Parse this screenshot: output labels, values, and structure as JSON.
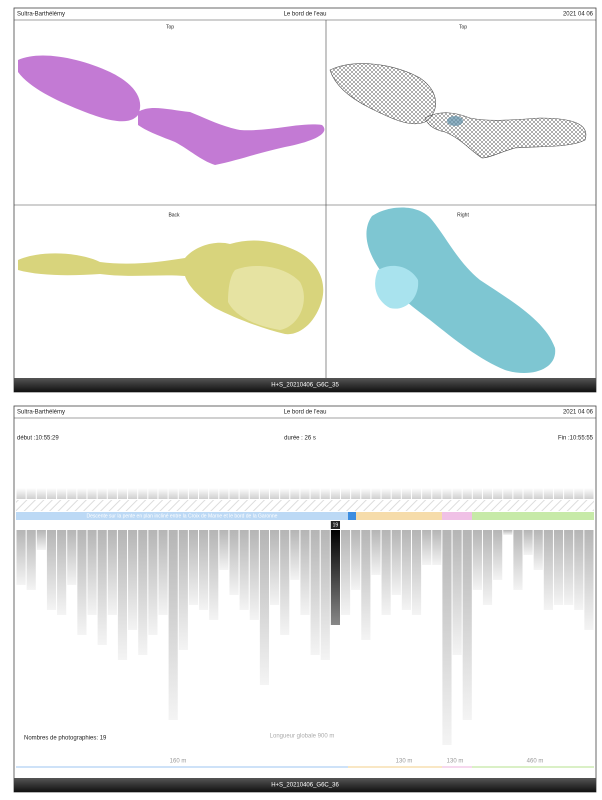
{
  "sheet_top": {
    "header": {
      "left": "Sultra-Barthélémy",
      "center": "Le bord de l'eau",
      "right": "2021 04 06"
    },
    "views": [
      "Top",
      "Top",
      "Back",
      "Right"
    ],
    "footer": "H+S_20210406_G6C_35"
  },
  "sheet_bottom": {
    "header": {
      "left": "Sultra-Barthélémy",
      "center": "Le bord de l'eau",
      "right": "2021 04 06"
    },
    "start": "début :10:55:29",
    "duration": "durée : 26 s",
    "end": "Fin :10:55:55",
    "segment_label": "Descente sur la pente en plan incliné entre la Croix de Marne et le bord de la Garonne",
    "photo_counts": [
      11,
      12,
      4,
      16,
      17,
      11,
      21,
      17,
      23,
      17,
      26,
      20,
      25,
      21,
      17,
      38,
      24,
      15,
      16,
      18,
      8,
      13,
      16,
      18,
      31,
      15,
      21,
      10,
      17,
      25,
      26,
      19,
      17,
      12,
      22,
      9,
      17,
      13,
      16,
      17,
      7,
      7,
      43,
      25,
      38,
      12,
      15,
      10,
      1,
      12,
      5,
      8,
      16,
      15,
      15,
      16,
      20
    ],
    "highlight_index": 31,
    "photographs": "Nombres de photographies: 19",
    "total_length": "Longueur globale 900 m",
    "distances": [
      "160 m",
      "130 m",
      "130 m",
      "460 m"
    ],
    "footer": "H+S_20210406_G6C_36"
  }
}
